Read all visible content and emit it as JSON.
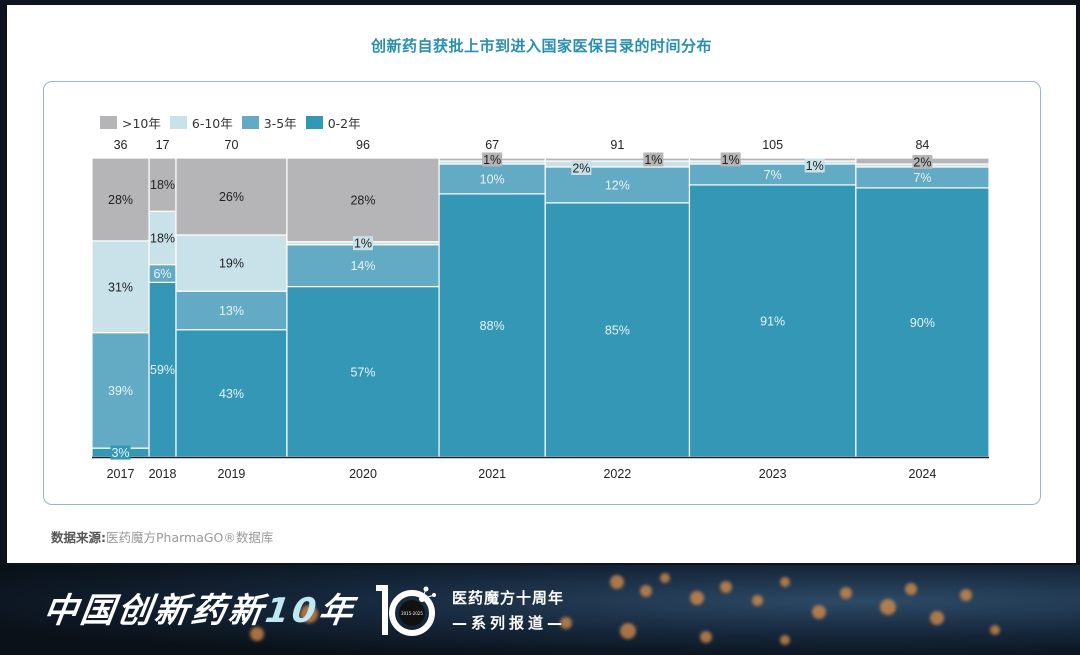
{
  "chart_data": {
    "type": "bar",
    "subtype": "marimekko-stacked-100",
    "title": "创新药自获批上市到进入国家医保目录的时间分布",
    "categories": [
      "2017",
      "2018",
      "2019",
      "2020",
      "2021",
      "2022",
      "2023",
      "2024"
    ],
    "totals": [
      36,
      17,
      70,
      96,
      67,
      91,
      105,
      84
    ],
    "series": [
      {
        "name": "0-2年",
        "color": "#3397b5",
        "label_color": "#e8f4f8",
        "values": [
          3,
          59,
          43,
          57,
          88,
          85,
          91,
          90
        ]
      },
      {
        "name": "3-5年",
        "color": "#63aac4",
        "label_color": "#e8f4f8",
        "values": [
          39,
          6,
          13,
          14,
          10,
          12,
          7,
          7
        ]
      },
      {
        "name": "6-10年",
        "color": "#c9e2ea",
        "label_color": "#222222",
        "values": [
          31,
          18,
          19,
          1,
          1,
          2,
          1,
          1
        ]
      },
      {
        "name": ">10年",
        "color": "#b5b4b6",
        "label_color": "#222222",
        "values": [
          28,
          18,
          26,
          28,
          1,
          1,
          1,
          2
        ]
      }
    ],
    "data_labels": [
      [
        "3%",
        "39%",
        "31%",
        "28%"
      ],
      [
        "59%",
        "6%",
        "18%",
        "18%"
      ],
      [
        "43%",
        "13%",
        "19%",
        "26%"
      ],
      [
        "57%",
        "14%",
        "1%",
        "28%"
      ],
      [
        "88%",
        "10%",
        "",
        "1%"
      ],
      [
        "85%",
        "12%",
        "2%",
        "1%"
      ],
      [
        "91%",
        "7%",
        "1%",
        "1%"
      ],
      [
        "90%",
        "7%",
        "",
        "2%"
      ]
    ],
    "legend": [
      "&gt;10年",
      "6-10年",
      "3-5年",
      "0-2年"
    ],
    "legend_position": "top-left",
    "ylim": [
      0,
      100
    ],
    "xlabel": "",
    "ylabel": "",
    "grid": false
  },
  "legend": {
    "items": [
      {
        "label": ">10年",
        "color": "#b5b4b6"
      },
      {
        "label": "6-10年",
        "color": "#c9e2ea"
      },
      {
        "label": "3-5年",
        "color": "#63aac4"
      },
      {
        "label": "0-2年",
        "color": "#3397b5"
      }
    ]
  },
  "source": {
    "label": "数据来源:",
    "value": "医药魔方PharmaGO®数据库"
  },
  "banner": {
    "title_main": "中国创新药新",
    "title_num": "10",
    "title_end": "年",
    "logo_years": "2015-2025",
    "series_line1": "医药魔方十周年",
    "series_line2": "—系列报道—"
  }
}
